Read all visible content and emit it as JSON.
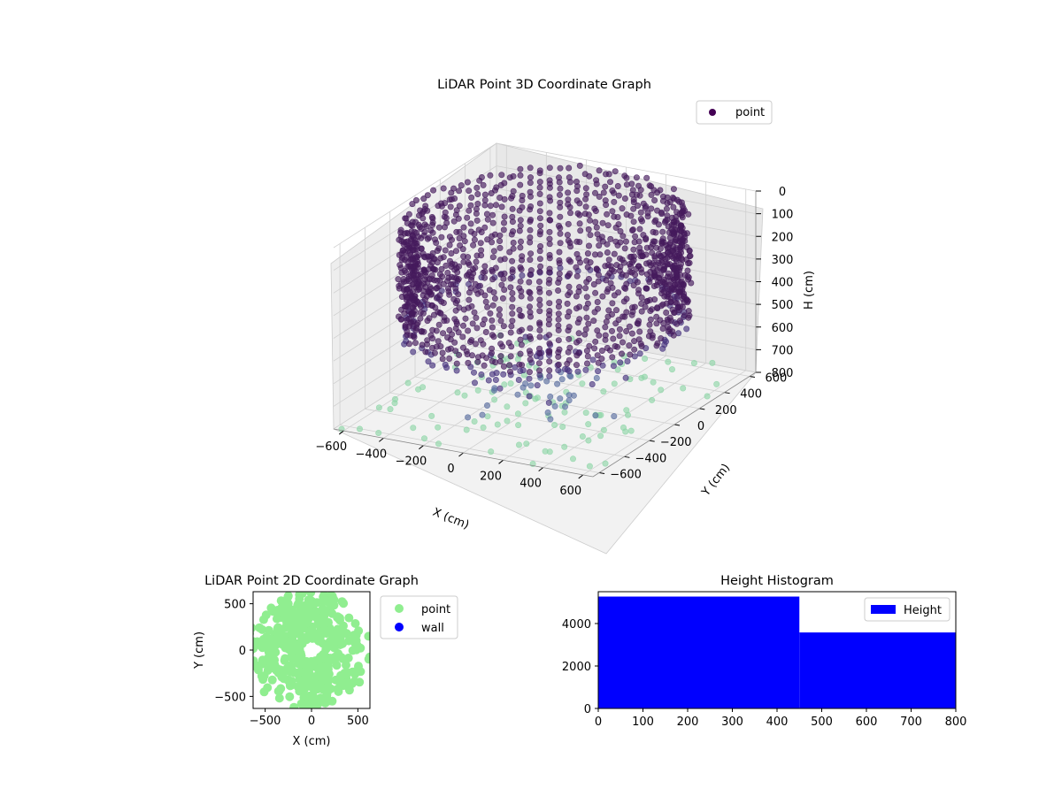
{
  "chart_data": [
    {
      "type": "scatter",
      "projection": "3d",
      "title": "LiDAR Point 3D Coordinate Graph",
      "xlabel": "X (cm)",
      "ylabel": "Y (cm)",
      "zlabel": "H (cm)",
      "x_ticks": [
        "−600",
        "−400",
        "−200",
        "0",
        "200",
        "400",
        "600"
      ],
      "y_ticks": [
        "−600",
        "−400",
        "−200",
        "0",
        "200",
        "400",
        "600"
      ],
      "z_ticks": [
        "0",
        "100",
        "200",
        "300",
        "400",
        "500",
        "600",
        "700",
        "800"
      ],
      "xlim": [
        -650,
        650
      ],
      "ylim": [
        -650,
        650
      ],
      "zlim": [
        0,
        800
      ],
      "z_inverted": true,
      "grid": true,
      "legend": {
        "placement": "upper-right",
        "entries": [
          {
            "label": "point",
            "color": "#440154"
          }
        ]
      },
      "colormap": "viridis",
      "series": [
        {
          "name": "point",
          "description_of_shape": "dense cylindrical wall of points, radius ~600 cm, H 0–450, plus scattered floor points at H ~800",
          "wall_radius": 600,
          "wall_h_range": [
            0,
            450
          ],
          "floor_h": 800
        }
      ]
    },
    {
      "type": "scatter",
      "title": "LiDAR Point 2D Coordinate Graph",
      "xlabel": "X (cm)",
      "ylabel": "Y (cm)",
      "x_ticks": [
        "−500",
        "0",
        "500"
      ],
      "y_ticks": [
        "−500",
        "0",
        "500"
      ],
      "xlim": [
        -630,
        630
      ],
      "ylim": [
        -630,
        630
      ],
      "legend": {
        "placement": "outside-right",
        "entries": [
          {
            "label": "point",
            "color": "#90ee90"
          },
          {
            "label": "wall",
            "color": "#0000ff"
          }
        ]
      },
      "series": [
        {
          "name": "point",
          "color": "#90ee90"
        },
        {
          "name": "wall",
          "color": "#0000ff"
        }
      ]
    },
    {
      "type": "bar",
      "subtype": "histogram",
      "title": "Height Histogram",
      "x_ticks": [
        "0",
        "100",
        "200",
        "300",
        "400",
        "500",
        "600",
        "700",
        "800"
      ],
      "y_ticks": [
        "0",
        "2000",
        "4000"
      ],
      "xlim": [
        0,
        800
      ],
      "ylim": [
        0,
        5500
      ],
      "legend": {
        "placement": "upper-right",
        "entries": [
          {
            "label": "Height",
            "color": "#0000ff"
          }
        ]
      },
      "bins": [
        {
          "start": 0,
          "end": 450,
          "count": 5270
        },
        {
          "start": 450,
          "end": 800,
          "count": 3580
        }
      ],
      "color": "#0000ff"
    }
  ]
}
